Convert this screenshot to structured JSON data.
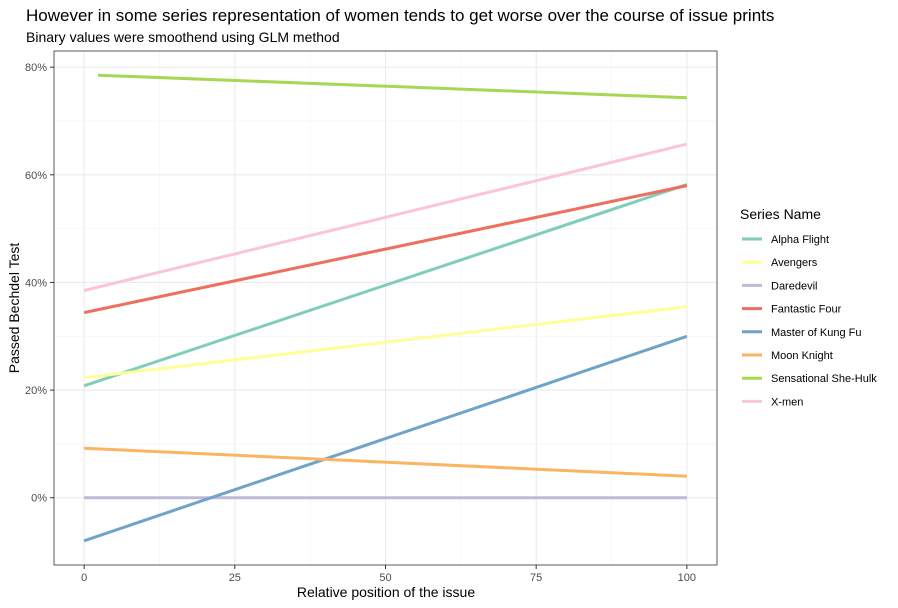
{
  "chart_data": {
    "type": "line",
    "title": "However in some series representation of women tends to get worse over the course of issue prints",
    "subtitle": "Binary values were smoothend using GLM method",
    "xlabel": "Relative position of the issue",
    "ylabel": "Passed Bechdel Test",
    "xlim": [
      -5,
      105
    ],
    "ylim": [
      -12.5,
      83
    ],
    "x_ticks": [
      0,
      25,
      50,
      75,
      100
    ],
    "x_tick_labels": [
      "0",
      "25",
      "50",
      "75",
      "100"
    ],
    "y_ticks": [
      0,
      20,
      40,
      60,
      80
    ],
    "y_tick_labels": [
      "0%",
      "20%",
      "40%",
      "60%",
      "80%"
    ],
    "grid": true,
    "legend": {
      "title": "Series Name",
      "placement": "right"
    },
    "series": [
      {
        "name": "Alpha Flight",
        "color": "#7fcdbb",
        "x": [
          0,
          100
        ],
        "y": [
          20.8,
          58.2
        ]
      },
      {
        "name": "Avengers",
        "color": "#ffff99",
        "x": [
          0,
          100
        ],
        "y": [
          22.3,
          35.5
        ]
      },
      {
        "name": "Daredevil",
        "color": "#bebada",
        "x": [
          0,
          100
        ],
        "y": [
          0,
          0
        ]
      },
      {
        "name": "Fantastic Four",
        "color": "#ef6f5e",
        "x": [
          0,
          100
        ],
        "y": [
          34.4,
          58.0
        ]
      },
      {
        "name": "Master of Kung Fu",
        "color": "#6fa3c8",
        "x": [
          0,
          100
        ],
        "y": [
          -8.0,
          30.0
        ]
      },
      {
        "name": "Moon Knight",
        "color": "#fdb462",
        "x": [
          0,
          100
        ],
        "y": [
          9.2,
          4.0
        ]
      },
      {
        "name": "Sensational She-Hulk",
        "color": "#a6d854",
        "x": [
          2.3,
          100
        ],
        "y": [
          78.5,
          74.3
        ]
      },
      {
        "name": "X-men",
        "color": "#fbc4dc",
        "x": [
          0,
          100
        ],
        "y": [
          38.5,
          65.7
        ]
      }
    ]
  }
}
